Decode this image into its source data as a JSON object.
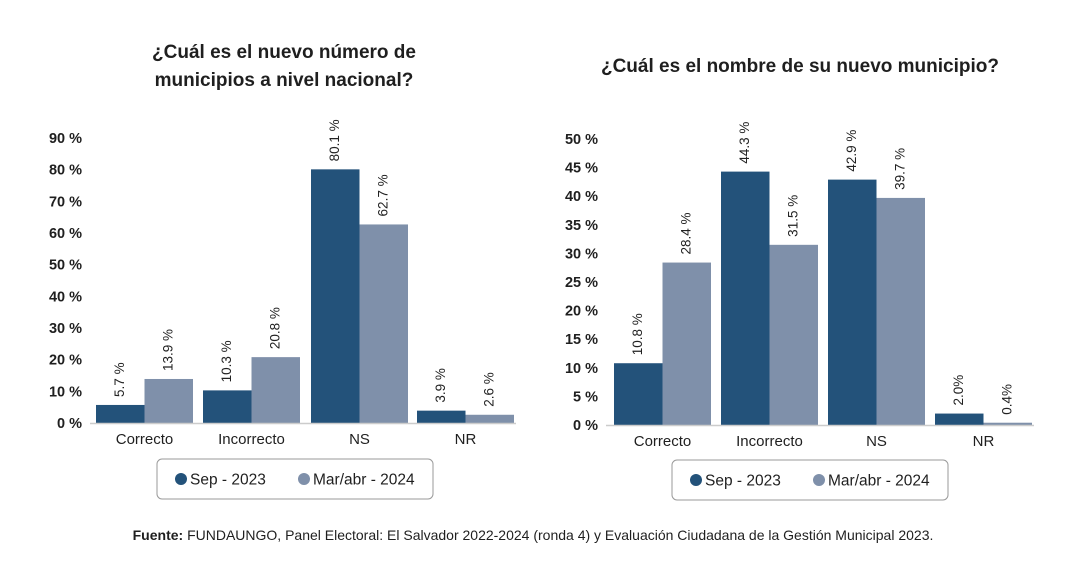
{
  "colors": {
    "sep2023": "#23527a",
    "marabr2024": "#7f90aa",
    "axis": "#cccccc",
    "legend_border": "#9a9a9a"
  },
  "chart_data": [
    {
      "type": "bar",
      "title_lines": [
        "¿Cuál es el nuevo número de",
        "municipios a nivel nacional?"
      ],
      "categories": [
        "Correcto",
        "Incorrecto",
        "NS",
        "NR"
      ],
      "series": [
        {
          "name": "Sep - 2023",
          "values": [
            5.7,
            10.3,
            80.1,
            3.9
          ],
          "labels": [
            "5.7 %",
            "10.3 %",
            "80.1 %",
            "3.9 %"
          ]
        },
        {
          "name": "Mar/abr - 2024",
          "values": [
            13.9,
            20.8,
            62.7,
            2.6
          ],
          "labels": [
            "13.9 %",
            "20.8 %",
            "62.7 %",
            "2.6 %"
          ]
        }
      ],
      "yticks": [
        "0 %",
        "10 %",
        "20 %",
        "30 %",
        "40 %",
        "50 %",
        "60 %",
        "70 %",
        "80 %",
        "90 %"
      ],
      "ytick_values": [
        0,
        10,
        20,
        30,
        40,
        50,
        60,
        70,
        80,
        90
      ],
      "ylim": [
        0,
        90
      ],
      "xlabel": "",
      "ylabel": "",
      "grid": false,
      "legend": "bottom"
    },
    {
      "type": "bar",
      "title_lines": [
        "¿Cuál es el nombre de su nuevo municipio?"
      ],
      "categories": [
        "Correcto",
        "Incorrecto",
        "NS",
        "NR"
      ],
      "series": [
        {
          "name": "Sep - 2023",
          "values": [
            10.8,
            44.3,
            42.9,
            2.0
          ],
          "labels": [
            "10.8 %",
            "44.3 %",
            "42.9 %",
            "2.0%"
          ]
        },
        {
          "name": "Mar/abr - 2024",
          "values": [
            28.4,
            31.5,
            39.7,
            0.4
          ],
          "labels": [
            "28.4 %",
            "31.5 %",
            "39.7 %",
            "0.4%"
          ]
        }
      ],
      "yticks": [
        "0 %",
        "5 %",
        "10 %",
        "15 %",
        "20 %",
        "25 %",
        "30 %",
        "35 %",
        "40 %",
        "45 %",
        "50 %"
      ],
      "ytick_values": [
        0,
        5,
        10,
        15,
        20,
        25,
        30,
        35,
        40,
        45,
        50
      ],
      "ylim": [
        0,
        50
      ],
      "xlabel": "",
      "ylabel": "",
      "grid": false,
      "legend": "bottom"
    }
  ],
  "source": {
    "label": "Fuente:",
    "text": " FUNDAUNGO, Panel Electoral: El Salvador 2022-2024 (ronda 4) y Evaluación Ciudadana de la Gestión Municipal 2023."
  }
}
